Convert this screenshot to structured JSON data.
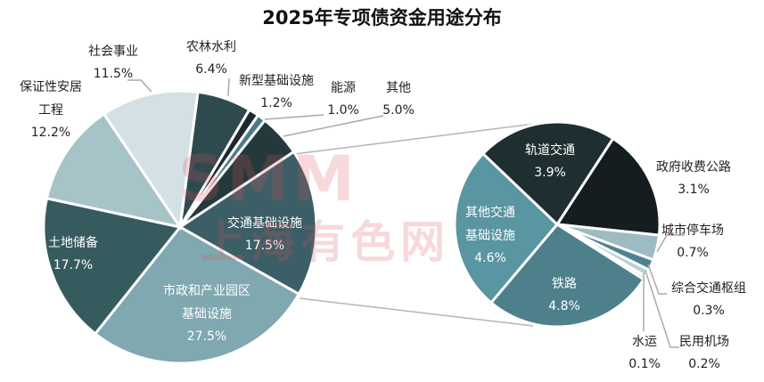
{
  "chart_data": {
    "type": "pie",
    "subtype": "pie-of-pie",
    "title": "2025年专项债资金用途分布",
    "main": [
      {
        "name": "农林水利",
        "value": 6.4,
        "label": "6.4%",
        "color": "#2e4a4f"
      },
      {
        "name": "新型基础设施",
        "value": 1.2,
        "label": "1.2%",
        "color": "#1c2a2c"
      },
      {
        "name": "能源",
        "value": 1.0,
        "label": "1.0%",
        "color": "#4a7b85"
      },
      {
        "name": "其他",
        "value": 5.0,
        "label": "5.0%",
        "color": "#24393c"
      },
      {
        "name": "交通基础设施",
        "value": 17.5,
        "label": "17.5%",
        "color": "#3c5e66"
      },
      {
        "name": "市政和产业园区基础设施",
        "name_lines": [
          "市政和产业园区",
          "基础设施"
        ],
        "value": 27.5,
        "label": "27.5%",
        "color": "#7fa8b0"
      },
      {
        "name": "土地储备",
        "value": 17.7,
        "label": "17.7%",
        "color": "#365b5e"
      },
      {
        "name": "保证性安居工程",
        "name_lines": [
          "保证性安居",
          "工程"
        ],
        "value": 12.2,
        "label": "12.2%",
        "color": "#a6c4c8"
      },
      {
        "name": "社会事业",
        "value": 11.5,
        "label": "11.5%",
        "color": "#d3e1e4"
      }
    ],
    "breakdown_of": "交通基础设施",
    "secondary": [
      {
        "name": "政府收费公路",
        "value": 3.1,
        "label": "3.1%",
        "color": "#141d20"
      },
      {
        "name": "城市停车场",
        "value": 0.7,
        "label": "0.7%",
        "color": "#9dbcc2"
      },
      {
        "name": "综合交通枢组",
        "value": 0.3,
        "label": "0.3%",
        "color": "#4f8290"
      },
      {
        "name": "民用机场",
        "value": 0.2,
        "label": "0.2%",
        "color": "#b9d0d4"
      },
      {
        "name": "水运",
        "value": 0.1,
        "label": "0.1%",
        "color": "#d5e3e6"
      },
      {
        "name": "铁路",
        "value": 4.8,
        "label": "4.8%",
        "color": "#4e808c"
      },
      {
        "name": "其他交通基础设施",
        "name_lines": [
          "其他交通",
          "基础设施"
        ],
        "value": 4.6,
        "label": "4.6%",
        "color": "#5a95a2"
      },
      {
        "name": "轨道交通",
        "value": 3.9,
        "label": "3.9%",
        "color": "#1f2e30"
      }
    ]
  },
  "watermark": {
    "line1": "SMM",
    "line2": "上海有色网"
  }
}
